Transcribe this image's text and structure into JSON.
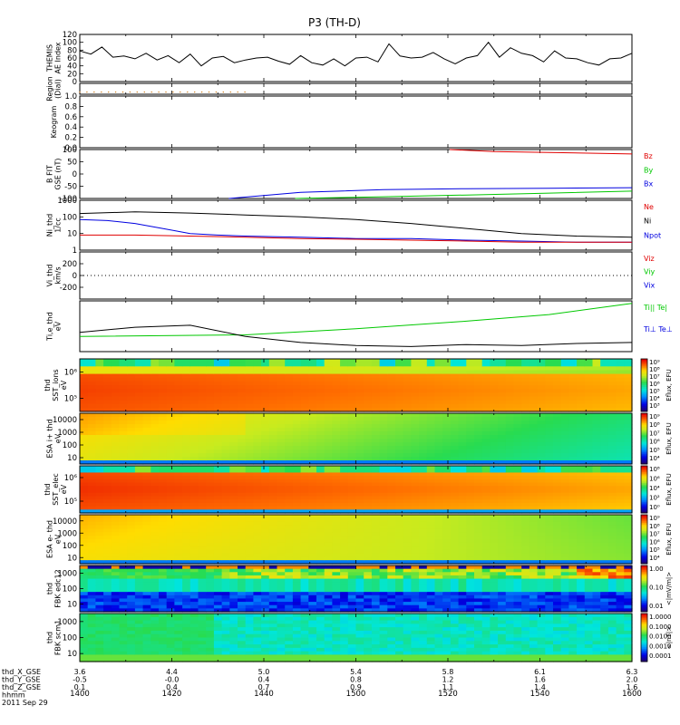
{
  "title": "P3 (TH-D)",
  "colors": {
    "red": "#e00000",
    "green": "#00c800",
    "blue": "#0000e0",
    "black": "#000000",
    "region_dots": "#d08020"
  },
  "chart_data": {
    "type": "line",
    "title": "P3 (TH-D)",
    "x_ticks": [
      "1400",
      "1420",
      "1440",
      "1500",
      "1520",
      "1540",
      "1600"
    ],
    "panels": [
      {
        "name": "ae-index",
        "ylabel": [
          "THEMIS",
          "AE Index"
        ],
        "ylim": [
          0,
          120
        ],
        "ticks": [
          "120",
          "100",
          "80",
          "60",
          "40",
          "20",
          "0"
        ],
        "series": [
          {
            "color": "black",
            "x": [
              0,
              2,
              4,
              6,
              8,
              10,
              12,
              14,
              16,
              18,
              20,
              22,
              24,
              26,
              28,
              30,
              32,
              34,
              36,
              38,
              40,
              42,
              44,
              46,
              48,
              50,
              52,
              54,
              56,
              58,
              60,
              62,
              64,
              66,
              68,
              70,
              72,
              74,
              76,
              78,
              80,
              82,
              84,
              86,
              88,
              90,
              92,
              94,
              96,
              98,
              100
            ],
            "y": [
              78,
              70,
              88,
              62,
              65,
              58,
              72,
              55,
              66,
              48,
              70,
              40,
              60,
              64,
              48,
              55,
              60,
              62,
              52,
              44,
              66,
              48,
              42,
              58,
              40,
              60,
              62,
              50,
              96,
              65,
              60,
              62,
              74,
              58,
              45,
              60,
              66,
              100,
              62,
              86,
              72,
              66,
              50,
              78,
              60,
              58,
              48,
              42,
              58,
              60,
              72
            ]
          }
        ]
      },
      {
        "name": "region",
        "ylabel": [
          "Region",
          "(Dial)"
        ],
        "dots": {
          "x0": 0,
          "x1": 30,
          "yfrac": 0.8
        }
      },
      {
        "name": "keogram",
        "ylabel": [
          "Keogram"
        ],
        "ylim": [
          0,
          1.0
        ],
        "ticks": [
          "1.0",
          "0.8",
          "0.6",
          "0.4",
          "0.2",
          "0.0"
        ]
      },
      {
        "name": "b-field",
        "ylabel": [
          "B FIT",
          "GSE (nT)"
        ],
        "ylim": [
          -100,
          100
        ],
        "ticks": [
          "100",
          "50",
          "0",
          "-50",
          "-100"
        ],
        "legend": [
          [
            "Bz",
            "red"
          ],
          [
            "By",
            "green"
          ],
          [
            "Bx",
            "blue"
          ]
        ],
        "series": [
          {
            "name": "Bz",
            "color": "red",
            "x": [
              67,
              75,
              85,
              100
            ],
            "y": [
              100,
              92,
              88,
              82
            ]
          },
          {
            "name": "By",
            "color": "green",
            "x": [
              39,
              55,
              70,
              85,
              100
            ],
            "y": [
              -100,
              -93,
              -86,
              -78,
              -70
            ]
          },
          {
            "name": "Bx",
            "color": "blue",
            "x": [
              27,
              40,
              55,
              70,
              85,
              100
            ],
            "y": [
              -100,
              -75,
              -64,
              -60,
              -58,
              -56
            ]
          }
        ]
      },
      {
        "name": "density",
        "ylabel": [
          "Ni_thd",
          "1/cc"
        ],
        "scale": "log",
        "ylim": [
          1,
          1000
        ],
        "ticks": [
          "1000",
          "100",
          "10",
          "1"
        ],
        "legend": [
          [
            "Ne",
            "red"
          ],
          [
            "Ni",
            "black"
          ],
          [
            "Npot",
            "blue"
          ]
        ],
        "series": [
          {
            "name": "Ni",
            "color": "black",
            "x": [
              0,
              10,
              20,
              30,
              40,
              50,
              60,
              70,
              80,
              90,
              100
            ],
            "y": [
              160,
              200,
              170,
              130,
              100,
              70,
              40,
              20,
              10,
              7,
              6
            ]
          },
          {
            "name": "Npot",
            "color": "blue",
            "x": [
              0,
              5,
              10,
              15,
              20,
              25,
              30,
              40,
              50,
              60,
              70,
              80,
              90,
              100
            ],
            "y": [
              70,
              60,
              40,
              20,
              10,
              8,
              7,
              6,
              5,
              5,
              4,
              3.5,
              3,
              3
            ]
          },
          {
            "name": "Ne",
            "color": "red",
            "x": [
              0,
              10,
              20,
              30,
              40,
              50,
              60,
              70,
              80,
              90,
              100
            ],
            "y": [
              8,
              8,
              7,
              6,
              5,
              4.5,
              4,
              3.5,
              3,
              3,
              3
            ]
          }
        ]
      },
      {
        "name": "velocity",
        "ylabel": [
          "Vi_thd",
          "km/s"
        ],
        "ylim": [
          -400,
          400
        ],
        "ticks": [
          "200",
          "0",
          "-200"
        ],
        "legend": [
          [
            "Viz",
            "red"
          ],
          [
            "Viy",
            "green"
          ],
          [
            "Vix",
            "blue"
          ]
        ]
      },
      {
        "name": "temperature",
        "ylabel": [
          "Ti,e_thd",
          "eV"
        ],
        "ylim": [
          0,
          1
        ],
        "legend": [
          [
            "Ti|| Te|",
            "green"
          ],
          [
            "Ti⊥ Te⊥",
            "blue"
          ]
        ],
        "series": [
          {
            "name": "Ti|| Te|",
            "color": "green",
            "x": [
              0,
              30,
              50,
              70,
              85,
              100
            ],
            "y": [
              0.3,
              0.33,
              0.45,
              0.6,
              0.73,
              0.95
            ]
          },
          {
            "name": "Ti⊥ Te⊥",
            "color": "black",
            "x": [
              0,
              10,
              20,
              30,
              40,
              50,
              60,
              70,
              80,
              90,
              100
            ],
            "y": [
              0.38,
              0.48,
              0.52,
              0.3,
              0.18,
              0.12,
              0.1,
              0.14,
              0.12,
              0.16,
              0.18
            ]
          }
        ]
      },
      {
        "name": "sst-ions",
        "ylabel": [
          "thd",
          "SST_ions",
          "eV"
        ],
        "ticks": [
          "10⁶",
          "10⁵"
        ],
        "colorbar": [
          "10⁹",
          "10⁸",
          "10⁷",
          "10⁶",
          "10⁵",
          "10⁴",
          "10³"
        ],
        "cbar_label": "Eflux, EFU"
      },
      {
        "name": "esa-ions",
        "ylabel": [
          "ESA i+ thd",
          "eV"
        ],
        "ticks": [
          "10000",
          "1000",
          "100",
          "10"
        ],
        "colorbar": [
          "10⁹",
          "10⁸",
          "10⁷",
          "10⁶",
          "10⁵",
          "10⁴"
        ],
        "cbar_label": "Eflux, EFU"
      },
      {
        "name": "sst-elec",
        "ylabel": [
          "thd",
          "SST_elec",
          "eV"
        ],
        "ticks": [
          "10⁶",
          "10⁵"
        ],
        "colorbar": [
          "10⁸",
          "10⁶",
          "10⁴",
          "10²",
          "10⁰"
        ],
        "cbar_label": "Eflux, EFU"
      },
      {
        "name": "esa-elec",
        "ylabel": [
          "ESA e- thd",
          "eV"
        ],
        "ticks": [
          "10000",
          "1000",
          "100",
          "10"
        ],
        "colorbar": [
          "10⁹",
          "10⁸",
          "10⁷",
          "10⁶",
          "10⁵",
          "10⁴"
        ],
        "cbar_label": "Eflux, EFU"
      },
      {
        "name": "fbk-edc12",
        "ylabel": [
          "thd",
          "FBK edc12"
        ],
        "ticks": [
          "1000",
          "100",
          "10"
        ],
        "colorbar": [
          "1.00",
          "0.10",
          "0.01"
        ],
        "cbar_label": "<|mV/m|>"
      },
      {
        "name": "fbk-scm1",
        "ylabel": [
          "thd",
          "FBK scm1"
        ],
        "ticks": [
          "1000",
          "100",
          "10"
        ],
        "colorbar": [
          "1.0000",
          "0.1000",
          "0.0100",
          "0.0010",
          "0.0001"
        ],
        "cbar_label": "<|nT|>"
      }
    ],
    "ephemeris": {
      "labels": [
        "thd_X_GSE",
        "thd_Y_GSE",
        "thd_Z_GSE",
        "hhmm",
        "2011 Sep 29"
      ],
      "rows": [
        [
          "3.6",
          "4.4",
          "5.0",
          "5.4",
          "5.8",
          "6.1",
          "6.3"
        ],
        [
          "-0.5",
          "-0.0",
          "0.4",
          "0.8",
          "1.2",
          "1.6",
          "2.0"
        ],
        [
          "0.1",
          "0.4",
          "0.7",
          "0.9",
          "1.1",
          "1.4",
          "1.6"
        ],
        [
          "1400",
          "1420",
          "1440",
          "1500",
          "1520",
          "1540",
          "1600"
        ]
      ]
    }
  }
}
